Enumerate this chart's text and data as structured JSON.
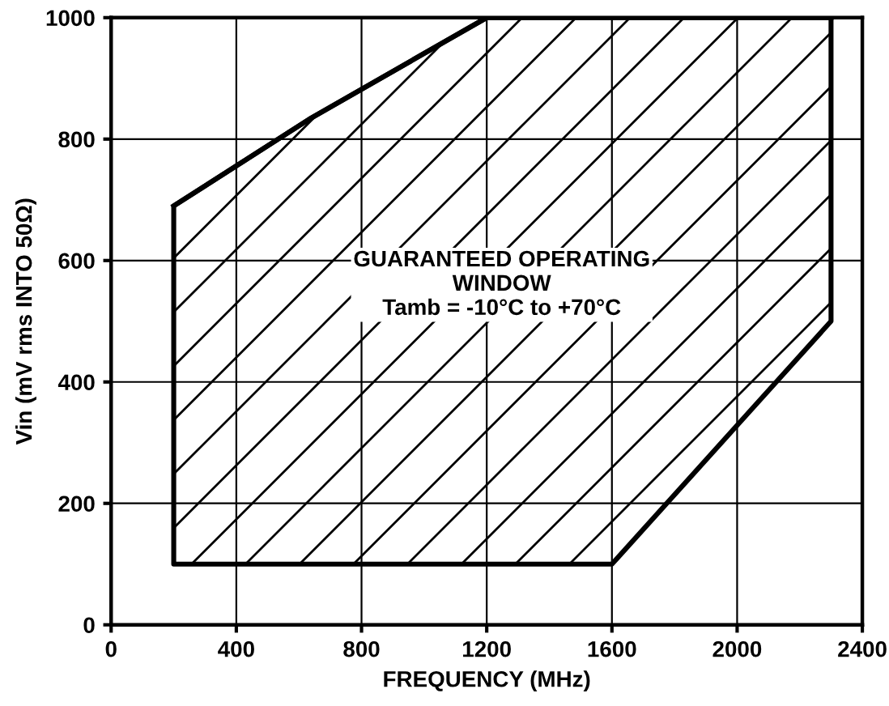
{
  "chart_data": {
    "type": "line",
    "xlabel": "FREQUENCY (MHz)",
    "ylabel": "Vin (mV rms INTO 50Ω)",
    "annotations": [
      "GUARANTEED OPERATING\nWINDOW\nTamb = -10°C to +70°C"
    ],
    "x": [
      200,
      640,
      1200,
      1600,
      2300
    ],
    "series": [
      {
        "color": "#000000",
        "values": [
          690,
          835,
          1000,
          1000,
          1000
        ],
        "lower": [
          100,
          100,
          100,
          100,
          500
        ],
        "upper": [
          690,
          835,
          1000,
          1000,
          1000
        ]
      }
    ],
    "xlim": [
      0,
      2400
    ],
    "xticks": [
      0,
      400,
      800,
      1200,
      1600,
      2000,
      2400
    ],
    "ylim": [
      0,
      1000
    ],
    "yticks": [
      0,
      200,
      400,
      600,
      800,
      1000
    ],
    "grid": true,
    "marker": "none",
    "line_style": "solid"
  }
}
